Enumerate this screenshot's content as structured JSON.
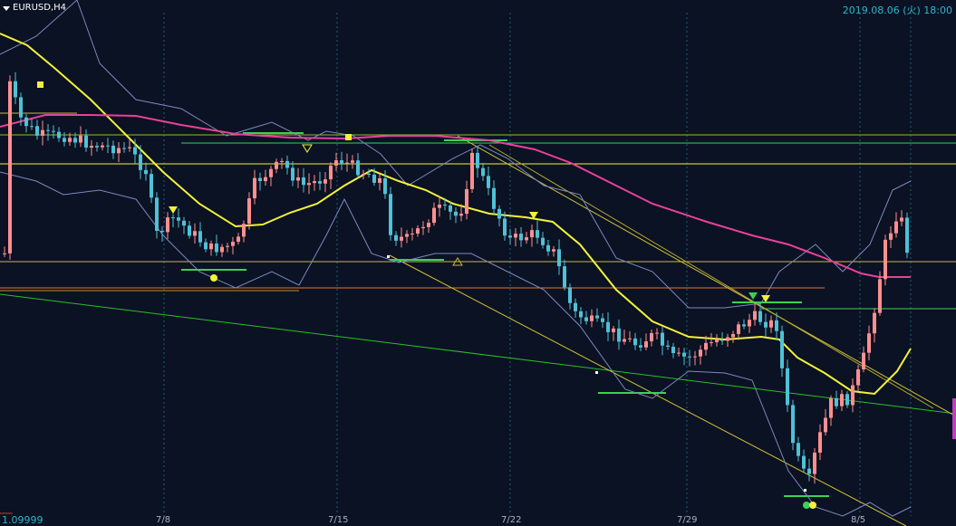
{
  "header": {
    "symbol": "EURUSD,H4",
    "datetime": "2019.08.06 (火) 18:00"
  },
  "footer": {
    "price_label": "1.09999"
  },
  "chart_data": {
    "type": "candlestick",
    "symbol": "EURUSD",
    "timeframe": "H4",
    "x_ticks": [
      "7/8",
      "7/15",
      "7/22",
      "7/29",
      "8/5"
    ],
    "y_min_label": "1.09999",
    "grid": "vertical dotted at week starts",
    "indicators": [
      "Bollinger Bands",
      "moving average (yellow)",
      "moving average (magenta)"
    ],
    "colors": {
      "up": "#ff8f8f",
      "down": "#4fc1d6",
      "background": "#0b1223",
      "ma_fast": "#f2f23a",
      "ma_slow": "#e8419a",
      "bands": "#7c89c0",
      "support": "#39d353",
      "resistance": "#f2f23a"
    }
  }
}
